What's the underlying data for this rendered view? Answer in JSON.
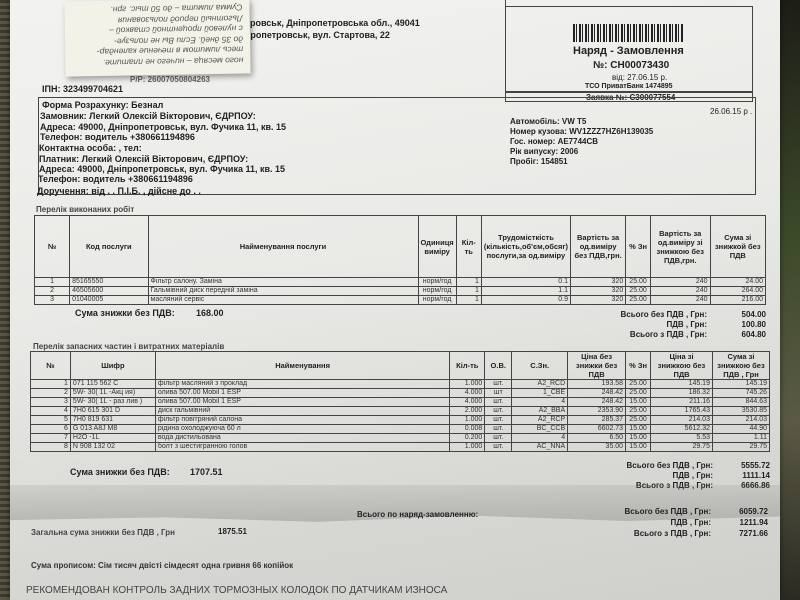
{
  "sticky_note": {
    "lines": [
      "Сумма лимита – до 50 тыс. грн.",
      "Льготный период пользования",
      "с нулевой процентной ставкой –",
      "до 35 дней. Если Вы не пользуе-",
      "тесь лимитом в течение календар-",
      "ного месяца – ничего не платите."
    ]
  },
  "header": {
    "address_line1": "ровськ, Дніпропетровська обл., 49041",
    "address_line2": "пропетровськ, вул. Стартова, 22",
    "account_line": "Р/Р: 26007050804263",
    "ipn": "ІПН: 323499704621",
    "doc_title": "Наряд - Замовлення",
    "doc_number": "№: CH00073430",
    "doc_date": "від: 27.06.15 р.",
    "bank": "ТСО ПриватБанк 1474895",
    "request": "Заявка №: С300077554",
    "request_date": "26.06.15 р ."
  },
  "client": {
    "payment_form": "Форма Розрахунку: Безнал",
    "customer": "Замовник: Легкий Олексій Вікторович, ЄДРПОУ:",
    "customer_address": "Адреса: 49000, Дніпропетровськ, вул. Фучика 11, кв. 15",
    "customer_phone": "Телефон: водитель      +380661194896",
    "contact": "Контактна особа:   , тел:",
    "payer": "Платник: Легкий Олексій Вікторович, ЄДРПОУ:",
    "payer_address": "Адреса: 49000, Дніпропетровськ, вул. Фучика 11, кв. 15",
    "payer_phone": "Телефон: водитель      +380661194896",
    "power_of_attorney": "Доручення:   від   .  . П.І.Б.  , дійсне до   .  ."
  },
  "vehicle": {
    "car": "Автомобіль: VW T5",
    "body_number": "Номер кузова: WV1ZZZ7HZ6H139035",
    "plate": "Гос. номер: AE7744CB",
    "year": "Рік випуску: 2006",
    "mileage": "Пробіг: 154851"
  },
  "works": {
    "title": "Перелік виконаних робіт",
    "headers": [
      "№",
      "Код послуги",
      "Найменування послуги",
      "Одиниця виміру",
      "Кіл-ть",
      "Трудомісткість (кількість,об'єм,обсяг) послуги,за од.виміру",
      "Вартість за од.виміру без ПДВ,грн.",
      "% Зн",
      "Вартість за од.виміру зі знижкою без ПДВ,грн.",
      "Сума зі знижкой без ПДВ"
    ],
    "rows": [
      [
        "1",
        "85165550",
        "Фільтр салону. Заміна",
        "норм/год",
        "1",
        "0.1",
        "320",
        "25.00",
        "240",
        "24.00"
      ],
      [
        "2",
        "46505600",
        "Гальмівний диск передній заміна",
        "норм/год",
        "1",
        "1.1",
        "320",
        "25.00",
        "240",
        "264.00"
      ],
      [
        "3",
        "01040005",
        "масляний сервіс",
        "норм/год",
        "1",
        "0.9",
        "320",
        "25.00",
        "240",
        "216.00"
      ]
    ],
    "discount_label": "Сума знижки без ПДВ:",
    "discount_value": "168.00",
    "totals": [
      {
        "label": "Всього без ПДВ , Грн:",
        "value": "504.00"
      },
      {
        "label": "ПДВ , Грн:",
        "value": "100.80"
      },
      {
        "label": "Всього з ПДВ , Грн:",
        "value": "604.80"
      }
    ]
  },
  "parts": {
    "title": "Перелік запасних частин і витратних матеріалів",
    "headers": [
      "№",
      "Шифр",
      "Найменування",
      "Кіл-ть",
      "О.В.",
      "С.Зн.",
      "Ціна без знижки без ПДВ",
      "% Зн",
      "Ціна зі знижкою без ПДВ",
      "Сума зі знижкою без ПДВ , Грн"
    ],
    "rows": [
      [
        "1",
        "071 115 562 C",
        "фільтр масляний з проклад",
        "1.000",
        "шт.",
        "A2_RCD",
        "193.58",
        "25.00",
        "145.19",
        "145.19"
      ],
      [
        "2",
        "5W- 30( 1L -Акц ия)",
        "олива  507.00 Mobil 1 ESP",
        "4.000",
        "шт",
        "1_CBE",
        "248.42",
        "25.00",
        "186.32",
        "745.26"
      ],
      [
        "3",
        "5W- 30( 1L - раз лив )",
        "олива  507.00 Mobil 1 ESP",
        "4.000",
        "шт.",
        "4",
        "248.42",
        "15.00",
        "211.16",
        "844.63"
      ],
      [
        "4",
        "7H0 615 301 D",
        "диск гальмівний",
        "2.000",
        "шт.",
        "A2_BBA",
        "2353.90",
        "25.00",
        "1765.43",
        "3530.85"
      ],
      [
        "5",
        "7H0 819 631",
        "фільтр повітряний салона",
        "1.000",
        "шт.",
        "A2_RCP",
        "285.37",
        "25.00",
        "214.03",
        "214.03"
      ],
      [
        "6",
        "G  013 A8J M8",
        "рідина охолоджуюча 60 л",
        "0.008",
        "шт.",
        "BC_CCB",
        "6602.73",
        "15.00",
        "5612.32",
        "44.90"
      ],
      [
        "7",
        "H2O -1L",
        "вода дистильована",
        "0.200",
        "шт.",
        "4",
        "6.50",
        "15.00",
        "5.53",
        "1.11"
      ],
      [
        "8",
        "N  908 132 02",
        "болт з шестигранною голов",
        "1.000",
        "шт.",
        "AC_NNA",
        "35.00",
        "15.00",
        "29.75",
        "29.75"
      ]
    ],
    "discount_label": "Сума знижки без ПДВ:",
    "discount_value": "1707.51",
    "totals": [
      {
        "label": "Всього без ПДВ , Грн:",
        "value": "5555.72"
      },
      {
        "label": "ПДВ , Грн:",
        "value": "1111.14"
      },
      {
        "label": "Всього з ПДВ , Грн:",
        "value": "6666.86"
      }
    ]
  },
  "summary": {
    "order_total_label": "Всього по наряд-замовленню:",
    "totals": [
      {
        "label": "Всього без ПДВ , Грн:",
        "value": "6059.72"
      },
      {
        "label": "ПДВ , Грн:",
        "value": "1211.94"
      },
      {
        "label": "Всього з ПДВ , Грн:",
        "value": "7271.66"
      }
    ],
    "total_discount_label": "Загальна сума знижки без ПДВ  , Грн",
    "total_discount_value": "1875.51",
    "in_words": "Сума прописом: Сім тисяч двісті сімдесят одна гривня 66 копійок",
    "recommendation": "РЕКОМЕНДОВАН КОНТРОЛЬ ЗАДНИХ ТОРМОЗНЫХ КОЛОДОК ПО ДАТЧИКАМ ИЗНОСА"
  }
}
